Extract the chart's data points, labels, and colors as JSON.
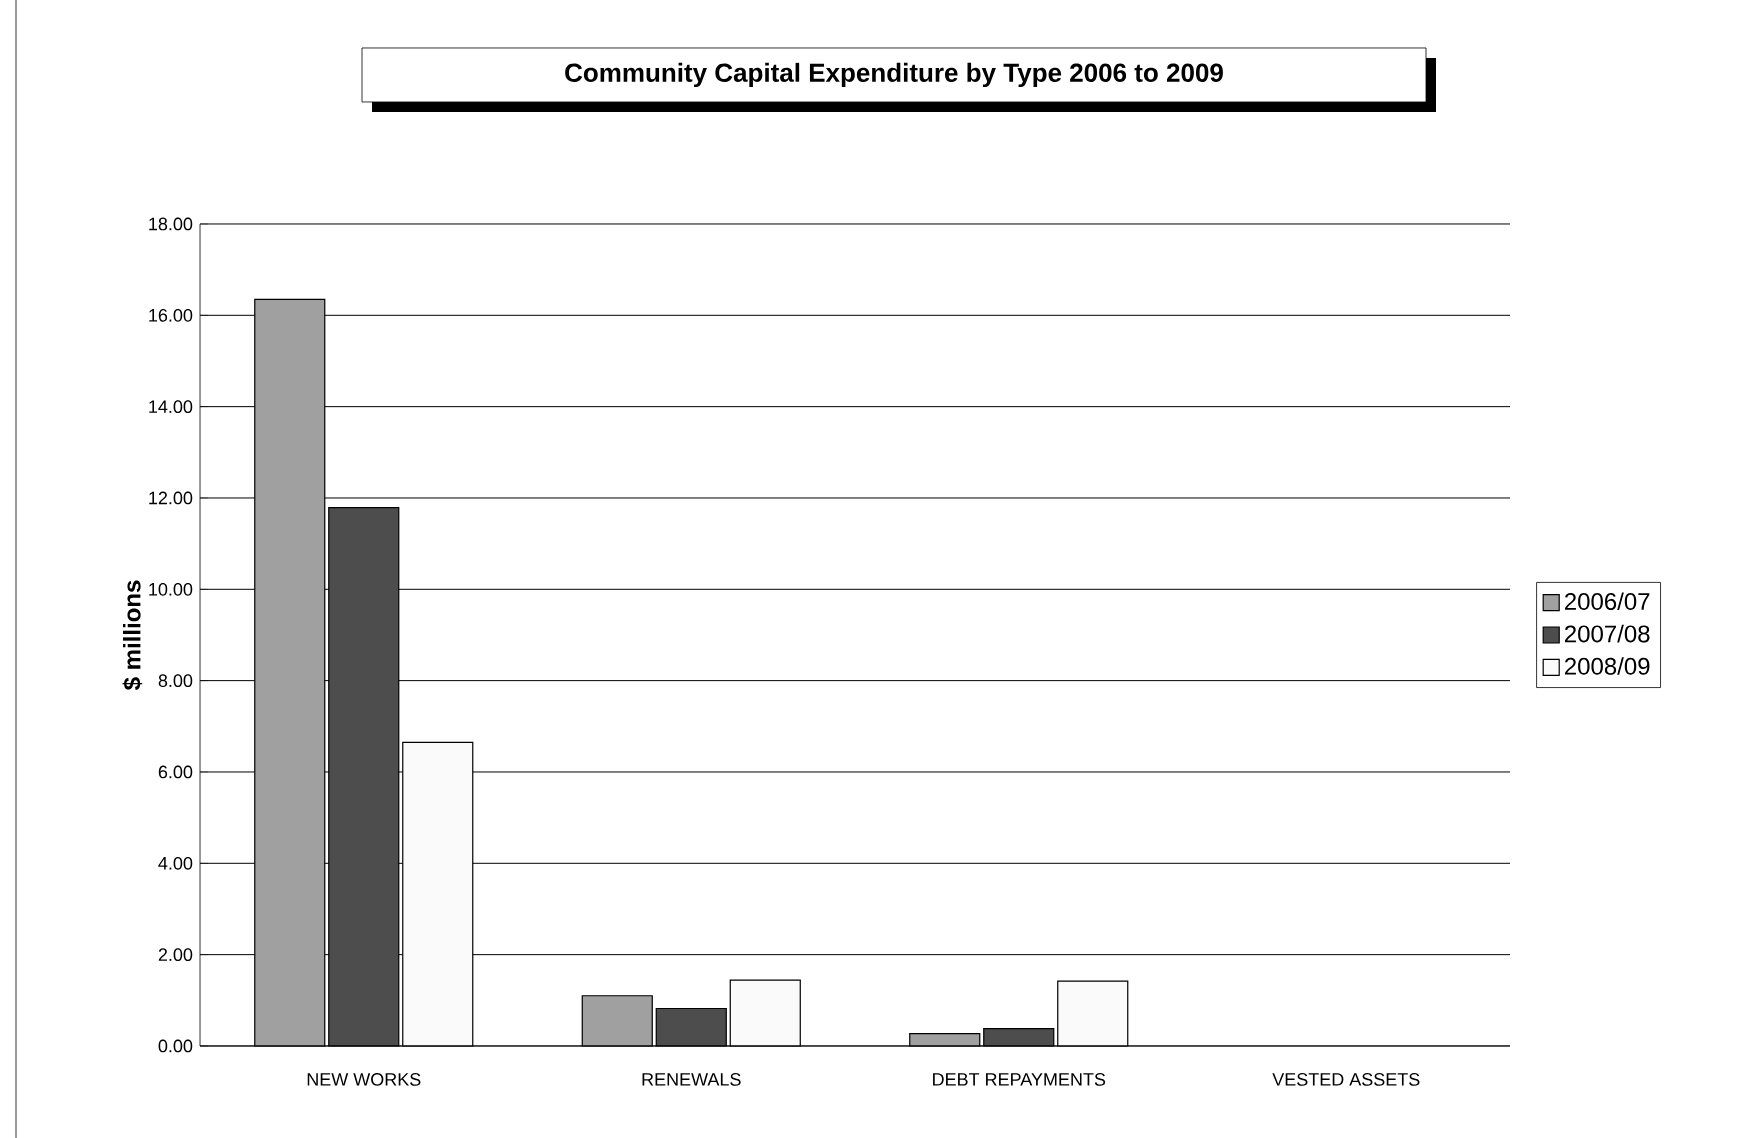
{
  "chart_data": {
    "type": "bar",
    "title": "Community Capital Expenditure by Type 2006 to 2009",
    "ylabel": "$ millions",
    "categories": [
      "NEW WORKS",
      "RENEWALS",
      "DEBT REPAYMENTS",
      "VESTED ASSETS"
    ],
    "series": [
      {
        "name": "2006/07",
        "color": "#a0a0a0",
        "values": [
          16.35,
          1.1,
          0.27,
          null
        ]
      },
      {
        "name": "2007/08",
        "color": "#4d4d4d",
        "values": [
          11.79,
          0.82,
          0.38,
          null
        ]
      },
      {
        "name": "2008/09",
        "color": "#fafafa",
        "values": [
          6.65,
          1.44,
          1.42,
          null
        ]
      }
    ],
    "ylim": [
      0,
      18
    ],
    "yticks": [
      {
        "value": 0,
        "label": "0.00"
      },
      {
        "value": 2,
        "label": "2.00"
      },
      {
        "value": 4,
        "label": "4.00"
      },
      {
        "value": 6,
        "label": "6.00"
      },
      {
        "value": 8,
        "label": "8.00"
      },
      {
        "value": 10,
        "label": "10.00"
      },
      {
        "value": 12,
        "label": "12.00"
      },
      {
        "value": 14,
        "label": "14.00"
      },
      {
        "value": 16,
        "label": "16.00"
      },
      {
        "value": 18,
        "label": "18.00"
      }
    ],
    "grid": "y",
    "legend": "right"
  }
}
